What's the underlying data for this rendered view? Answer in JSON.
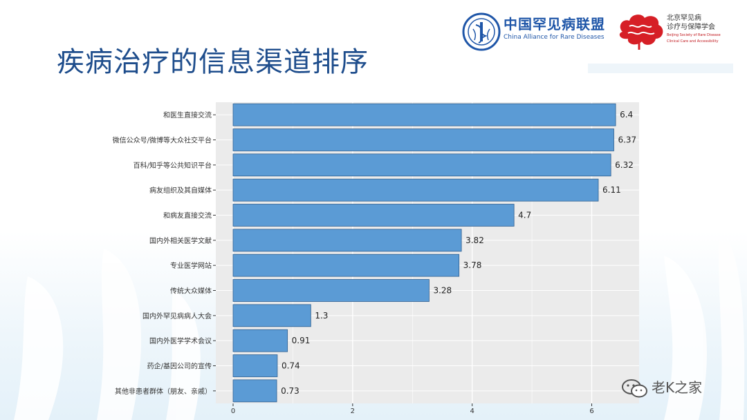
{
  "slide": {
    "title": "疾病治疗的信息渠道排序"
  },
  "logos": {
    "alliance_cn": "中国罕见病联盟",
    "alliance_en": "China Alliance for Rare Diseases",
    "society_cn_line1": "北京罕见病",
    "society_cn_line2": "诊疗与保障学会",
    "society_en_line1": "Beijing Society of Rare Disease",
    "society_en_line2": "Clinical Care and Accessibility"
  },
  "watermark": {
    "text": "老K之家",
    "icon": "wechat-icon"
  },
  "colors": {
    "bar_fill": "#5b9bd5",
    "bar_stroke": "#2f5f8f",
    "panel_bg": "#ebebeb",
    "gridline": "#ffffff",
    "title": "#1e4d8c"
  },
  "chart_data": {
    "type": "bar",
    "orientation": "horizontal",
    "categories": [
      "和医生直接交流",
      "微信公众号/微博等大众社交平台",
      "百科/知乎等公共知识平台",
      "病友组织及其自媒体",
      "和病友直接交流",
      "国内外相关医学文献",
      "专业医学网站",
      "传统大众媒体",
      "国内外罕见病病人大会",
      "国内外医学学术会议",
      "药企/基因公司的宣传",
      "其他非患者群体（朋友、亲戚）"
    ],
    "values": [
      6.4,
      6.37,
      6.32,
      6.11,
      4.7,
      3.82,
      3.78,
      3.28,
      1.3,
      0.91,
      0.74,
      0.73
    ],
    "data_labels": [
      "6.4",
      "6.37",
      "6.32",
      "6.11",
      "4.7",
      "3.82",
      "3.78",
      "3.28",
      "1.3",
      "0.91",
      "0.74",
      "0.73"
    ],
    "x_ticks": [
      0,
      2,
      4,
      6
    ],
    "x_tick_labels": [
      "0",
      "2",
      "4",
      "6"
    ],
    "xlim": [
      0,
      6.7
    ],
    "title": "",
    "xlabel": "",
    "ylabel": "",
    "grid": true,
    "legend": "none"
  }
}
